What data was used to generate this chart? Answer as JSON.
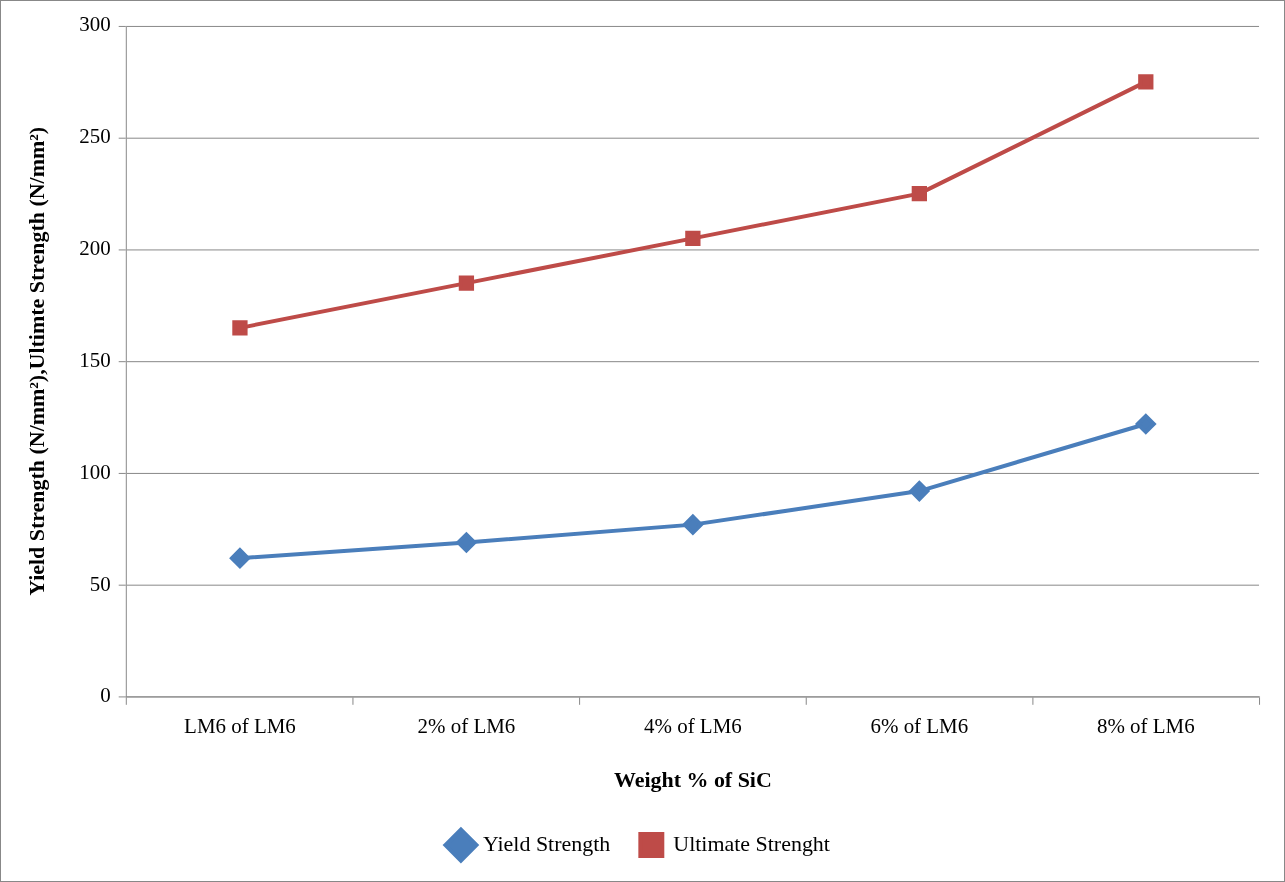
{
  "chart_data": {
    "type": "line",
    "xlabel": "Weight % of SiC",
    "ylabel": "Yield Strength (N/mm²),Ultimte Strength (N/mm²)",
    "categories": [
      "LM6 of LM6",
      "2% of LM6",
      "4% of LM6",
      "6% of LM6",
      "8% of LM6"
    ],
    "series": [
      {
        "name": "Yield Strength",
        "color": "#4a7ebb",
        "marker": "diamond",
        "values": [
          62,
          69,
          77,
          92,
          122
        ]
      },
      {
        "name": "Ultimate Strenght",
        "color": "#be4b48",
        "marker": "square",
        "values": [
          165,
          185,
          205,
          225,
          275
        ]
      }
    ],
    "ylim": [
      0,
      300
    ],
    "yticks": [
      0,
      50,
      100,
      150,
      200,
      250,
      300
    ],
    "grid": "y",
    "legend": "bottom",
    "line_style": "solid"
  }
}
